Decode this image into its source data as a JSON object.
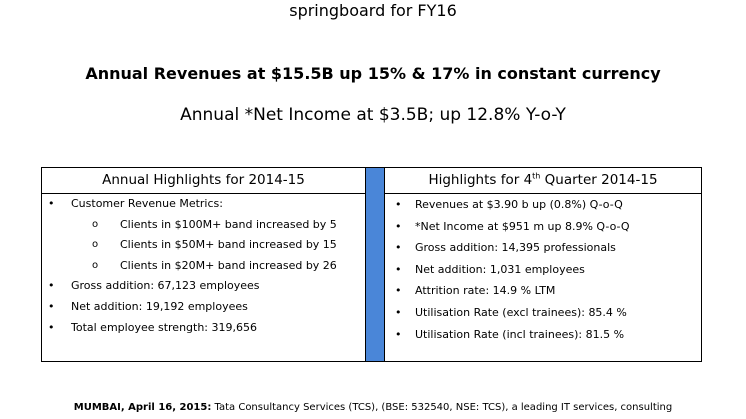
{
  "document": {
    "top_line": "springboard for FY16",
    "headline": "Annual Revenues at $15.5B up 15% & 17% in constant currency",
    "subhead": "Annual *Net Income at $3.5B; up 12.8% Y-o-Y"
  },
  "left_panel": {
    "title": "Annual Highlights for 2014-15",
    "items": [
      {
        "text": "Customer Revenue Metrics:",
        "level": 1
      },
      {
        "text": "Clients in $100M+ band increased by 5",
        "level": 2
      },
      {
        "text": "Clients in $50M+ band increased by 15",
        "level": 2
      },
      {
        "text": "Clients in $20M+ band increased by 26",
        "level": 2
      },
      {
        "text": "Gross addition: 67,123 employees",
        "level": 1
      },
      {
        "text": "Net addition: 19,192 employees",
        "level": 1
      },
      {
        "text": "Total employee strength: 319,656",
        "level": 1
      }
    ]
  },
  "right_panel": {
    "title_prefix": "Highlights for 4",
    "title_sup": "th",
    "title_suffix": " Quarter 2014-15",
    "items": [
      "Revenues at $3.90 b up (0.8%) Q-o-Q",
      "*Net Income at $951 m up 8.9% Q-o-Q",
      "Gross addition: 14,395 professionals",
      "Net addition: 1,031 employees",
      "Attrition rate: 14.9 % LTM",
      "Utilisation Rate (excl trainees): 85.4 %",
      "Utilisation Rate (incl trainees): 81.5 %"
    ]
  },
  "bottom": {
    "dateline": "MUMBAI, April 16, 2015:",
    "text": " Tata Consultancy Services (TCS), (BSE: 532540, NSE: TCS), a leading IT services, consulting"
  },
  "colors": {
    "divider_bar": "#4a86d8"
  },
  "icons": {
    "bullet_level1": "•",
    "bullet_level2": "o"
  }
}
